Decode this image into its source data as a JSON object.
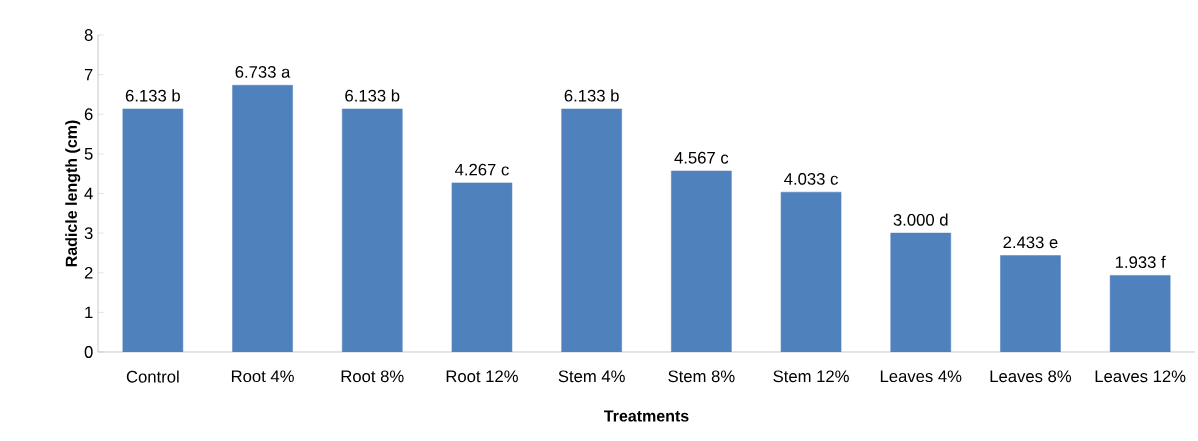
{
  "chart_data": {
    "type": "bar",
    "xlabel": "Treatments",
    "ylabel": "Radicle length (cm)",
    "categories": [
      "Control",
      "Root 4%",
      "Root 8%",
      "Root 12%",
      "Stem 4%",
      "Stem 8%",
      "Stem 12%",
      "Leaves 4%",
      "Leaves 8%",
      "Leaves 12%"
    ],
    "values": [
      6.133,
      6.733,
      6.133,
      4.267,
      6.133,
      4.567,
      4.033,
      3.0,
      2.433,
      1.933
    ],
    "value_labels": [
      "6.133 b",
      "6.733 a",
      "6.133 b",
      "4.267 c",
      "6.133 b",
      "4.567 c",
      "4.033 c",
      "3.000 d",
      "2.433 e",
      "1.933 f"
    ],
    "color": "#4f81bd",
    "ylim": [
      0,
      8
    ],
    "yticks": [
      0,
      1,
      2,
      3,
      4,
      5,
      6,
      7,
      8
    ]
  }
}
